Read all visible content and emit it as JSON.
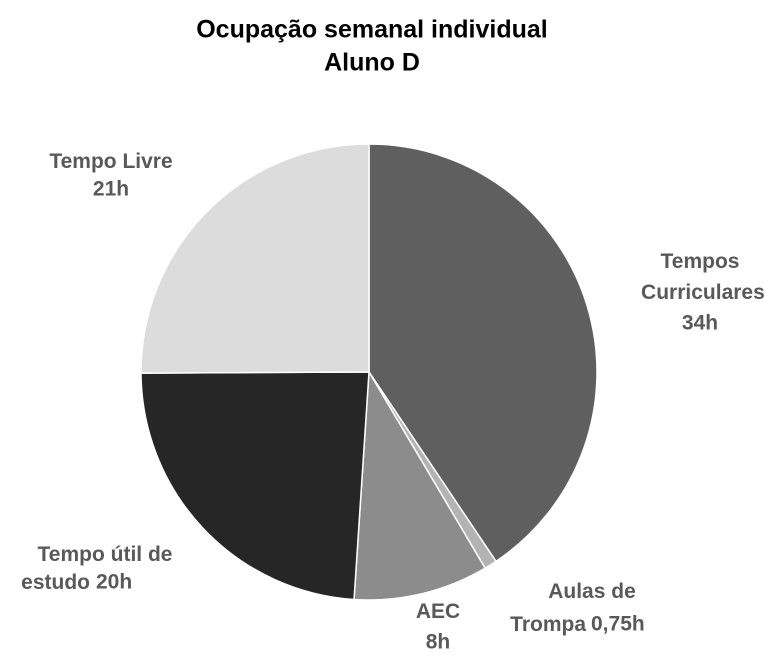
{
  "chart_data": {
    "type": "pie",
    "title": "Ocupação semanal individual",
    "subtitle": "Aluno D",
    "categories": [
      "Tempos Curriculares",
      "Aulas de Trompa",
      "AEC",
      "Tempo útil de estudo",
      "Tempo Livre"
    ],
    "values": [
      34,
      0.75,
      8,
      20,
      21
    ],
    "value_labels": [
      "34h",
      "0,75h",
      "8h",
      "20h",
      "21h"
    ],
    "colors": [
      "#5f5f5f",
      "#b3b3b3",
      "#8c8c8c",
      "#262626",
      "#dcdcdc"
    ]
  }
}
